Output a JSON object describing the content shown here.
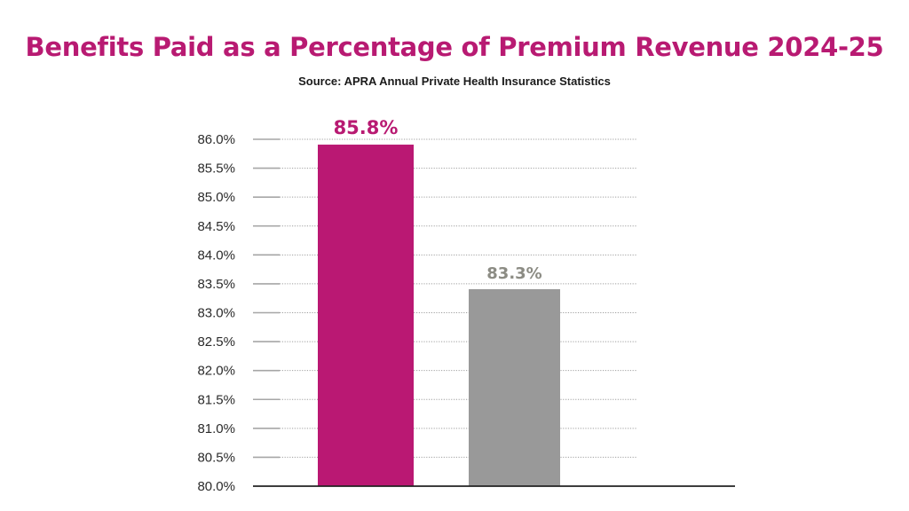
{
  "title": "Benefits Paid as a Percentage of Premium Revenue 2024-25",
  "subtitle": "Source: APRA Annual Private Health Insurance Statistics",
  "colors": {
    "title": "#B81A72",
    "subtitle": "#1a1a1a",
    "tick_label": "#2b2b2b",
    "gridline_solid": "#a6a6a6",
    "gridline_dotted": "#9e9e9e",
    "baseline": "#222222"
  },
  "chart_data": {
    "type": "bar",
    "title": "Benefits Paid as a Percentage of Premium Revenue 2024-25",
    "subtitle": "Source: APRA Annual Private Health Insurance Statistics",
    "xlabel": "",
    "ylabel": "",
    "categories": [
      "",
      ""
    ],
    "values": [
      85.8,
      83.3
    ],
    "data_labels": [
      "85.8%",
      "83.3%"
    ],
    "bar_colors": [
      "#BA1873",
      "#999999"
    ],
    "label_colors": [
      "#B81A72",
      "#8C8C84"
    ],
    "ylim": [
      80.0,
      86.0
    ],
    "y_ticks": [
      80.0,
      80.5,
      81.0,
      81.5,
      82.0,
      82.5,
      83.0,
      83.5,
      84.0,
      84.5,
      85.0,
      85.5,
      86.0
    ],
    "y_tick_labels": [
      "80.0%",
      "80.5%",
      "81.0%",
      "81.5%",
      "82.0%",
      "82.5%",
      "83.0%",
      "83.5%",
      "84.0%",
      "84.5%",
      "85.0%",
      "85.5%",
      "86.0%"
    ],
    "grid": true,
    "grid_style": "dotted",
    "legend": "none"
  }
}
